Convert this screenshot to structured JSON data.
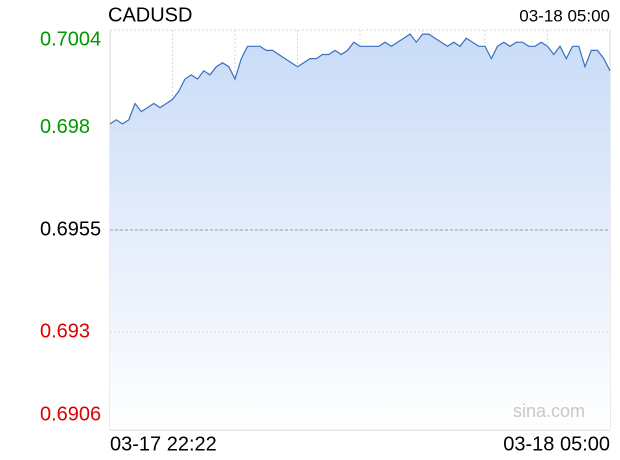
{
  "chart_data": {
    "type": "area",
    "title": "CADUSD",
    "timestamp": "03-18 05:00",
    "watermark": "sina.com",
    "color": "#3a6fc4",
    "up_color": "#009900",
    "down_color": "#dd0000",
    "base_color": "#000000",
    "baseline": 0.6955,
    "ylim": [
      0.6906,
      0.7004
    ],
    "yticks": [
      0.7004,
      0.698,
      0.6955,
      0.693,
      0.6906
    ],
    "grid": true,
    "categories": [
      "03-17 22:22",
      null,
      null,
      null,
      null,
      null,
      null,
      null,
      null,
      null,
      null,
      null,
      null,
      null,
      null,
      null,
      null,
      null,
      null,
      null,
      null,
      null,
      null,
      null,
      null,
      null,
      null,
      null,
      null,
      null,
      null,
      null,
      null,
      null,
      null,
      null,
      null,
      null,
      null,
      null,
      null,
      null,
      null,
      null,
      null,
      null,
      null,
      null,
      null,
      null,
      null,
      null,
      null,
      null,
      null,
      null,
      null,
      null,
      null,
      null,
      null,
      null,
      null,
      null,
      null,
      null,
      null,
      null,
      null,
      null,
      null,
      null,
      null,
      null,
      null,
      null,
      null,
      null,
      null,
      null,
      "03-18 05:00"
    ],
    "values": [
      0.6981,
      0.6982,
      0.6981,
      0.6982,
      0.6986,
      0.6984,
      0.6985,
      0.6986,
      0.6985,
      0.6986,
      0.6987,
      0.6989,
      0.6992,
      0.6993,
      0.6992,
      0.6994,
      0.6993,
      0.6995,
      0.6996,
      0.6995,
      0.6992,
      0.6997,
      0.7,
      0.7,
      0.7,
      0.6999,
      0.6999,
      0.6998,
      0.6997,
      0.6996,
      0.6995,
      0.6996,
      0.6997,
      0.6997,
      0.6998,
      0.6998,
      0.6999,
      0.6998,
      0.6999,
      0.7001,
      0.7,
      0.7,
      0.7,
      0.7,
      0.7001,
      0.7,
      0.7001,
      0.7002,
      0.7003,
      0.7001,
      0.7003,
      0.7003,
      0.7002,
      0.7001,
      0.7,
      0.7001,
      0.7,
      0.7002,
      0.7001,
      0.7,
      0.7,
      0.6997,
      0.7,
      0.7001,
      0.7,
      0.7001,
      0.7001,
      0.7,
      0.7,
      0.7001,
      0.7,
      0.6998,
      0.7,
      0.6997,
      0.7,
      0.7,
      0.6995,
      0.6999,
      0.6999,
      0.6997,
      0.6994
    ]
  }
}
